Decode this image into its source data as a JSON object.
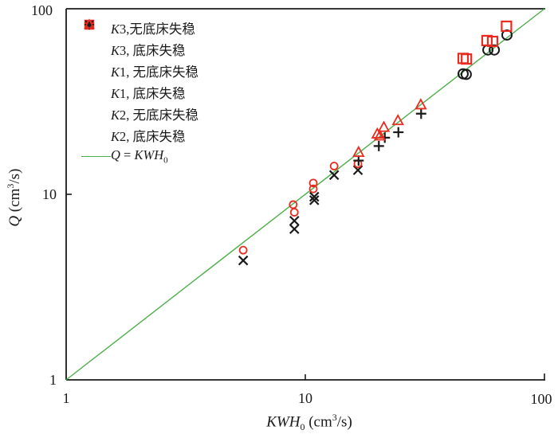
{
  "figure": {
    "background": "#ffffff",
    "axis_color": "#1a1a1a",
    "red": "#ea2b1f",
    "black": "#1a1a1a",
    "green": "#4daf4a"
  },
  "axes": {
    "x": {
      "scale": "log",
      "min": 1,
      "max": 100,
      "tick_labels": [
        "1",
        "10",
        "100"
      ]
    },
    "y": {
      "scale": "log",
      "min": 1,
      "max": 100,
      "tick_labels": [
        "1",
        "10",
        "100"
      ]
    }
  },
  "axis_labels": {
    "x": {
      "sym": "KWH",
      "sub": "0",
      "pre": " (cm",
      "sup": "3",
      "post": "/s)"
    },
    "y": {
      "sym": "Q",
      "pre": " (cm",
      "sup": "3",
      "post": "/s)"
    }
  },
  "legend": {
    "items": [
      {
        "marker": "circle",
        "color": "#1a1a1a",
        "prefix": "K",
        "num": "3",
        "rest": ",无底床失稳"
      },
      {
        "marker": "square",
        "color": "#ea2b1f",
        "prefix": "K",
        "num": "3",
        "rest": ", 底床失稳"
      },
      {
        "marker": "x",
        "color": "#1a1a1a",
        "prefix": "K",
        "num": "1",
        "rest": ", 无底床失稳"
      },
      {
        "marker": "circle-small",
        "color": "#ea2b1f",
        "prefix": "K",
        "num": "1",
        "rest": ", 底床失稳"
      },
      {
        "marker": "plus",
        "color": "#1a1a1a",
        "prefix": "K",
        "num": "2",
        "rest": ", 无底床失稳"
      },
      {
        "marker": "triangle",
        "color": "#ea2b1f",
        "prefix": "K",
        "num": "2",
        "rest": ", 底床失稳"
      }
    ],
    "line_item": {
      "color": "#4daf4a",
      "q": "Q",
      "eq": " = ",
      "kwh": "KWH",
      "sub": "0"
    }
  },
  "chart_data": {
    "type": "scatter",
    "xscale": "log",
    "yscale": "log",
    "xlim": [
      1,
      100
    ],
    "ylim": [
      1,
      100
    ],
    "xlabel": "KWH0 (cm3/s)",
    "ylabel": "Q (cm3/s)",
    "grid": false,
    "legend_position": "upper-left-inside",
    "series": [
      {
        "name": "K3,无底床失稳",
        "marker": "circle",
        "color": "#1a1a1a",
        "points": [
          [
            45.7,
            44.6
          ],
          [
            47.1,
            44.3
          ],
          [
            58.0,
            60.0
          ],
          [
            61.7,
            60.0
          ],
          [
            69.7,
            72.2
          ]
        ]
      },
      {
        "name": "K3, 底床失稳",
        "marker": "square",
        "color": "#ea2b1f",
        "points": [
          [
            45.7,
            54.0
          ],
          [
            47.2,
            53.6
          ],
          [
            57.5,
            67.4
          ],
          [
            60.7,
            66.7
          ],
          [
            69.4,
            80.5
          ]
        ]
      },
      {
        "name": "K1, 无底床失稳",
        "marker": "x",
        "color": "#1a1a1a",
        "points": [
          [
            5.5,
            4.4
          ],
          [
            9.0,
            6.5
          ],
          [
            9.0,
            7.2
          ],
          [
            10.9,
            9.3
          ],
          [
            10.9,
            9.7
          ],
          [
            13.2,
            12.7
          ],
          [
            16.6,
            13.5
          ]
        ]
      },
      {
        "name": "K1, 底床失稳",
        "marker": "circle-small",
        "color": "#ea2b1f",
        "points": [
          [
            5.5,
            5.0
          ],
          [
            8.9,
            8.8
          ],
          [
            9.0,
            8.0
          ],
          [
            10.8,
            10.7
          ],
          [
            10.8,
            11.5
          ],
          [
            13.2,
            14.2
          ],
          [
            16.6,
            14.6
          ]
        ]
      },
      {
        "name": "K2, 无底床失稳",
        "marker": "plus",
        "color": "#1a1a1a",
        "points": [
          [
            16.7,
            15.2
          ],
          [
            20.3,
            18.2
          ],
          [
            21.5,
            20.2
          ],
          [
            24.5,
            21.6
          ],
          [
            30.5,
            27.2
          ]
        ]
      },
      {
        "name": "K2, 底床失稳",
        "marker": "triangle",
        "color": "#ea2b1f",
        "points": [
          [
            16.7,
            16.8
          ],
          [
            20.0,
            21.1
          ],
          [
            20.5,
            20.6
          ],
          [
            21.3,
            22.9
          ],
          [
            24.4,
            24.9
          ],
          [
            30.4,
            30.3
          ]
        ]
      }
    ],
    "reference_line": {
      "label": "Q = KWH0",
      "color": "#4daf4a",
      "x": [
        1,
        100
      ],
      "y": [
        1,
        100
      ]
    }
  }
}
